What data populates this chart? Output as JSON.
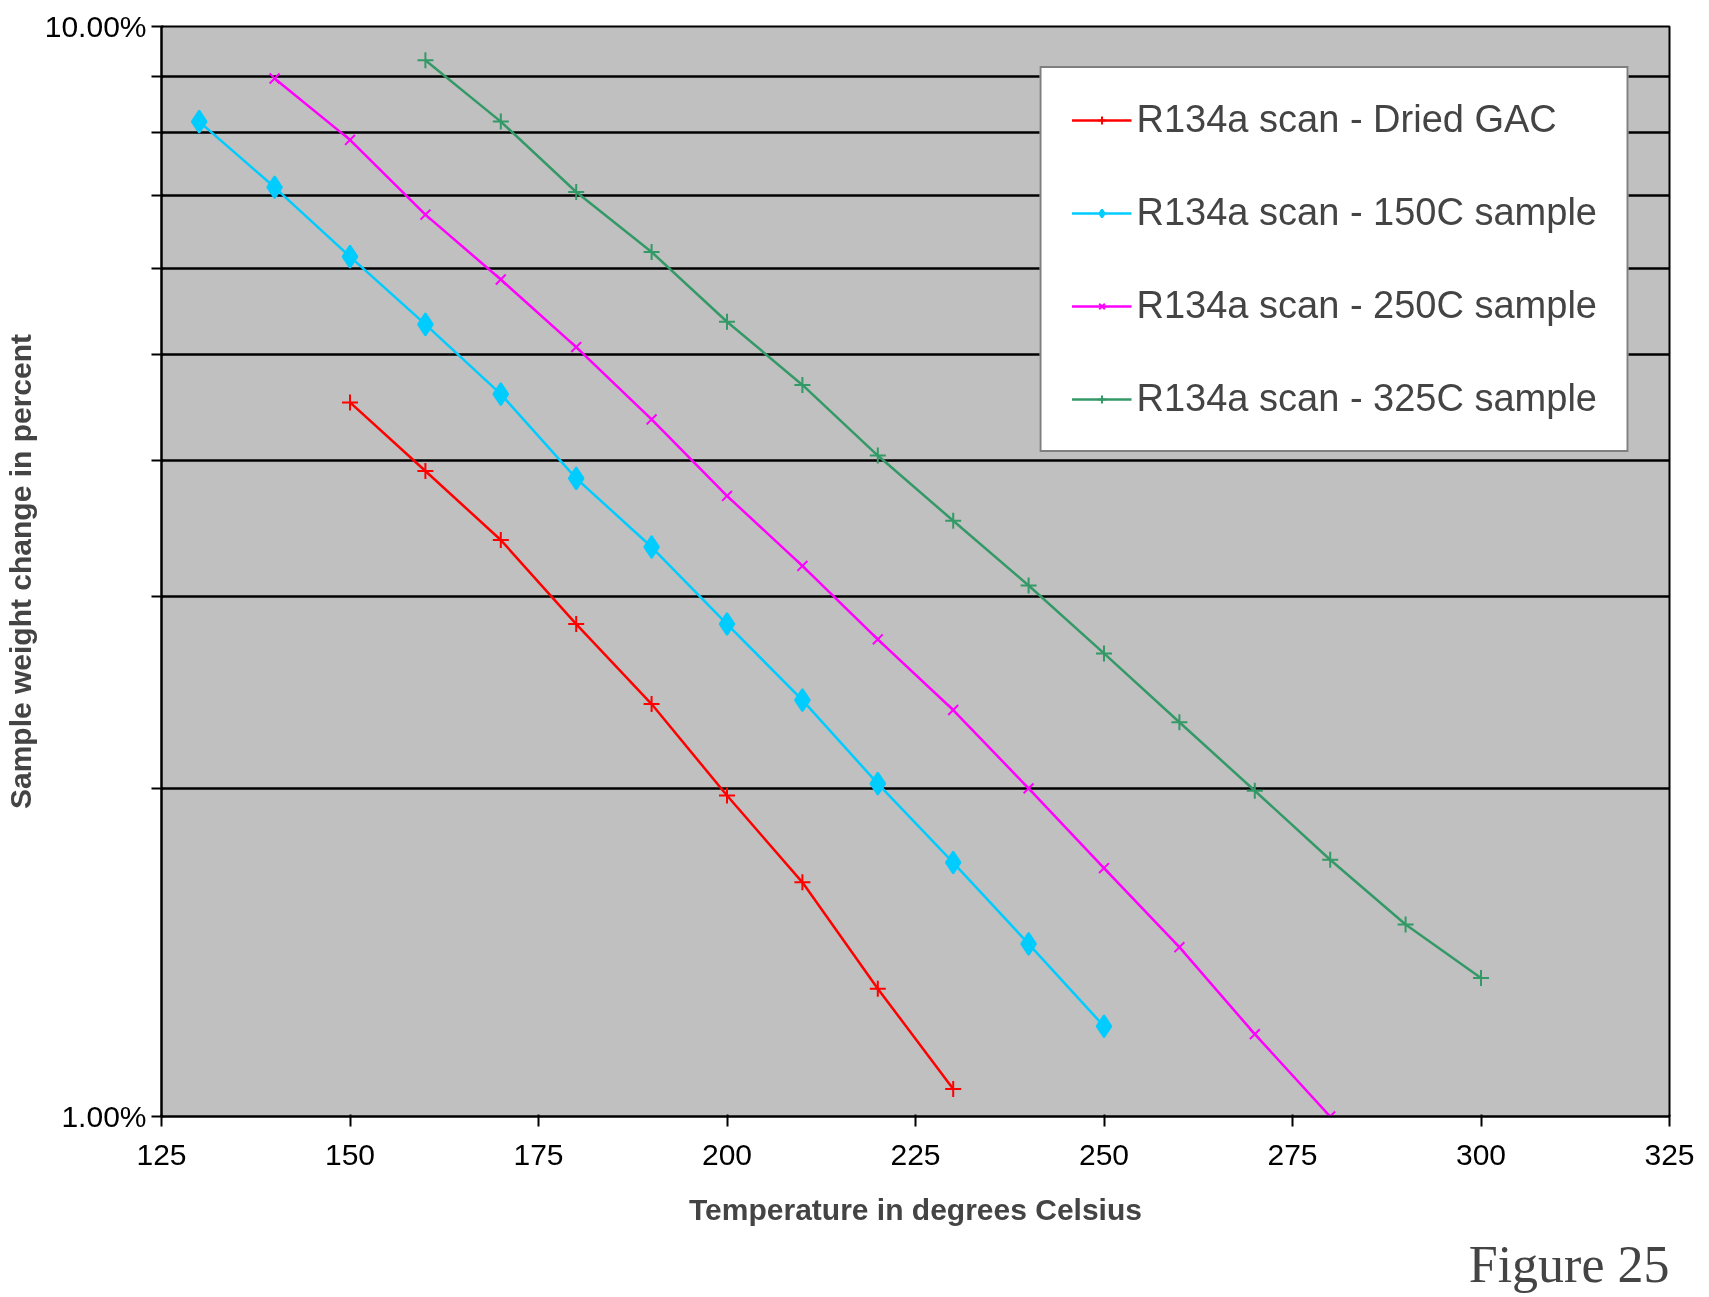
{
  "chart_data": {
    "type": "line",
    "xlabel": "Temperature in degrees Celsius",
    "ylabel": "Sample weight change in percent",
    "annotations": [
      "Figure 25"
    ],
    "log": "y",
    "grid": "y",
    "legend": "top right",
    "line_style": "solid",
    "xlim": [
      125,
      325
    ],
    "xticks": [
      125,
      150,
      175,
      200,
      225,
      250,
      275,
      300,
      325
    ],
    "ylim": [
      1,
      10
    ],
    "yticks": [
      {
        "value": 1,
        "label": "1.00%"
      },
      {
        "value": 2,
        "label": null
      },
      {
        "value": 3,
        "label": null
      },
      {
        "value": 4,
        "label": null
      },
      {
        "value": 5,
        "label": null
      },
      {
        "value": 6,
        "label": null
      },
      {
        "value": 7,
        "label": null
      },
      {
        "value": 8,
        "label": null
      },
      {
        "value": 9,
        "label": null
      },
      {
        "value": 10,
        "label": "10.00%"
      }
    ],
    "series": [
      {
        "name": "R134a scan - Dried GAC",
        "color": "#ff0000",
        "marker": "cross",
        "x": [
          150,
          160,
          170,
          180,
          190,
          200,
          210,
          220,
          230
        ],
        "values": [
          4.52,
          3.91,
          3.38,
          2.83,
          2.39,
          1.97,
          1.64,
          1.31,
          1.06
        ]
      },
      {
        "name": "R134a scan - 150C sample",
        "color": "#00ccff",
        "marker": "diamond",
        "x": [
          130,
          140,
          150,
          160,
          170,
          180,
          190,
          200,
          210,
          220,
          230,
          240,
          250
        ],
        "values": [
          8.18,
          7.12,
          6.15,
          5.33,
          4.6,
          3.85,
          3.33,
          2.83,
          2.41,
          2.02,
          1.71,
          1.44,
          1.21
        ]
      },
      {
        "name": "R134a scan - 250C sample",
        "color": "#ff00ff",
        "marker": "x",
        "x": [
          140,
          150,
          160,
          170,
          180,
          190,
          200,
          210,
          220,
          230,
          240,
          250,
          260,
          270,
          280
        ],
        "values": [
          8.96,
          7.87,
          6.72,
          5.86,
          5.08,
          4.36,
          3.71,
          3.2,
          2.74,
          2.36,
          2.0,
          1.69,
          1.43,
          1.19,
          1.0
        ]
      },
      {
        "name": "R134a scan - 325C sample",
        "color": "#339966",
        "marker": "cross",
        "x": [
          160,
          170,
          180,
          190,
          200,
          210,
          220,
          230,
          240,
          250,
          260,
          270,
          280,
          290,
          300
        ],
        "values": [
          9.31,
          8.18,
          7.05,
          6.21,
          5.36,
          4.69,
          4.04,
          3.52,
          3.07,
          2.66,
          2.3,
          1.99,
          1.72,
          1.5,
          1.34
        ]
      }
    ]
  }
}
